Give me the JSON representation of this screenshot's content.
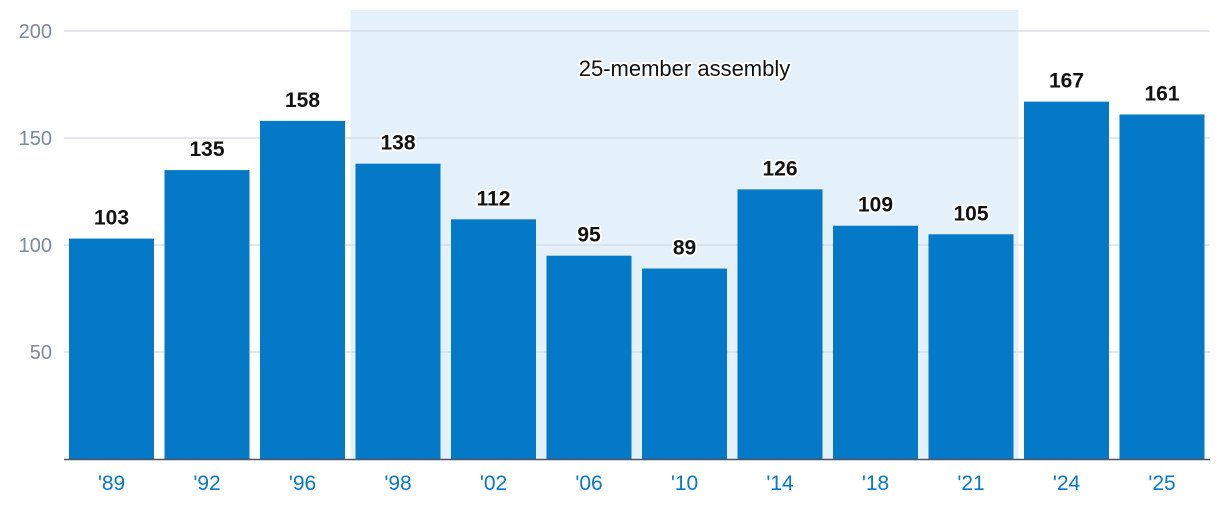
{
  "chart_data": {
    "type": "bar",
    "title": "",
    "xlabel": "",
    "ylabel": "",
    "ylim": [
      0,
      200
    ],
    "yticks": [
      50,
      100,
      150,
      200
    ],
    "grid": true,
    "categories": [
      "'89",
      "'92",
      "'96",
      "'98",
      "'02",
      "'06",
      "'10",
      "'14",
      "'18",
      "'21",
      "'24",
      "'25"
    ],
    "values": [
      103,
      135,
      158,
      138,
      112,
      95,
      89,
      126,
      109,
      105,
      167,
      161
    ],
    "highlight_region": {
      "label": "25-member assembly",
      "start_category": "'98",
      "end_category": "'21"
    }
  },
  "colors": {
    "bar": "#0479c8",
    "band": "#e4f1fa",
    "grid": "#d3dbe4",
    "axis": "#4a5563",
    "ytick": "#7c8a9c",
    "xtick": "#0a78c6"
  }
}
